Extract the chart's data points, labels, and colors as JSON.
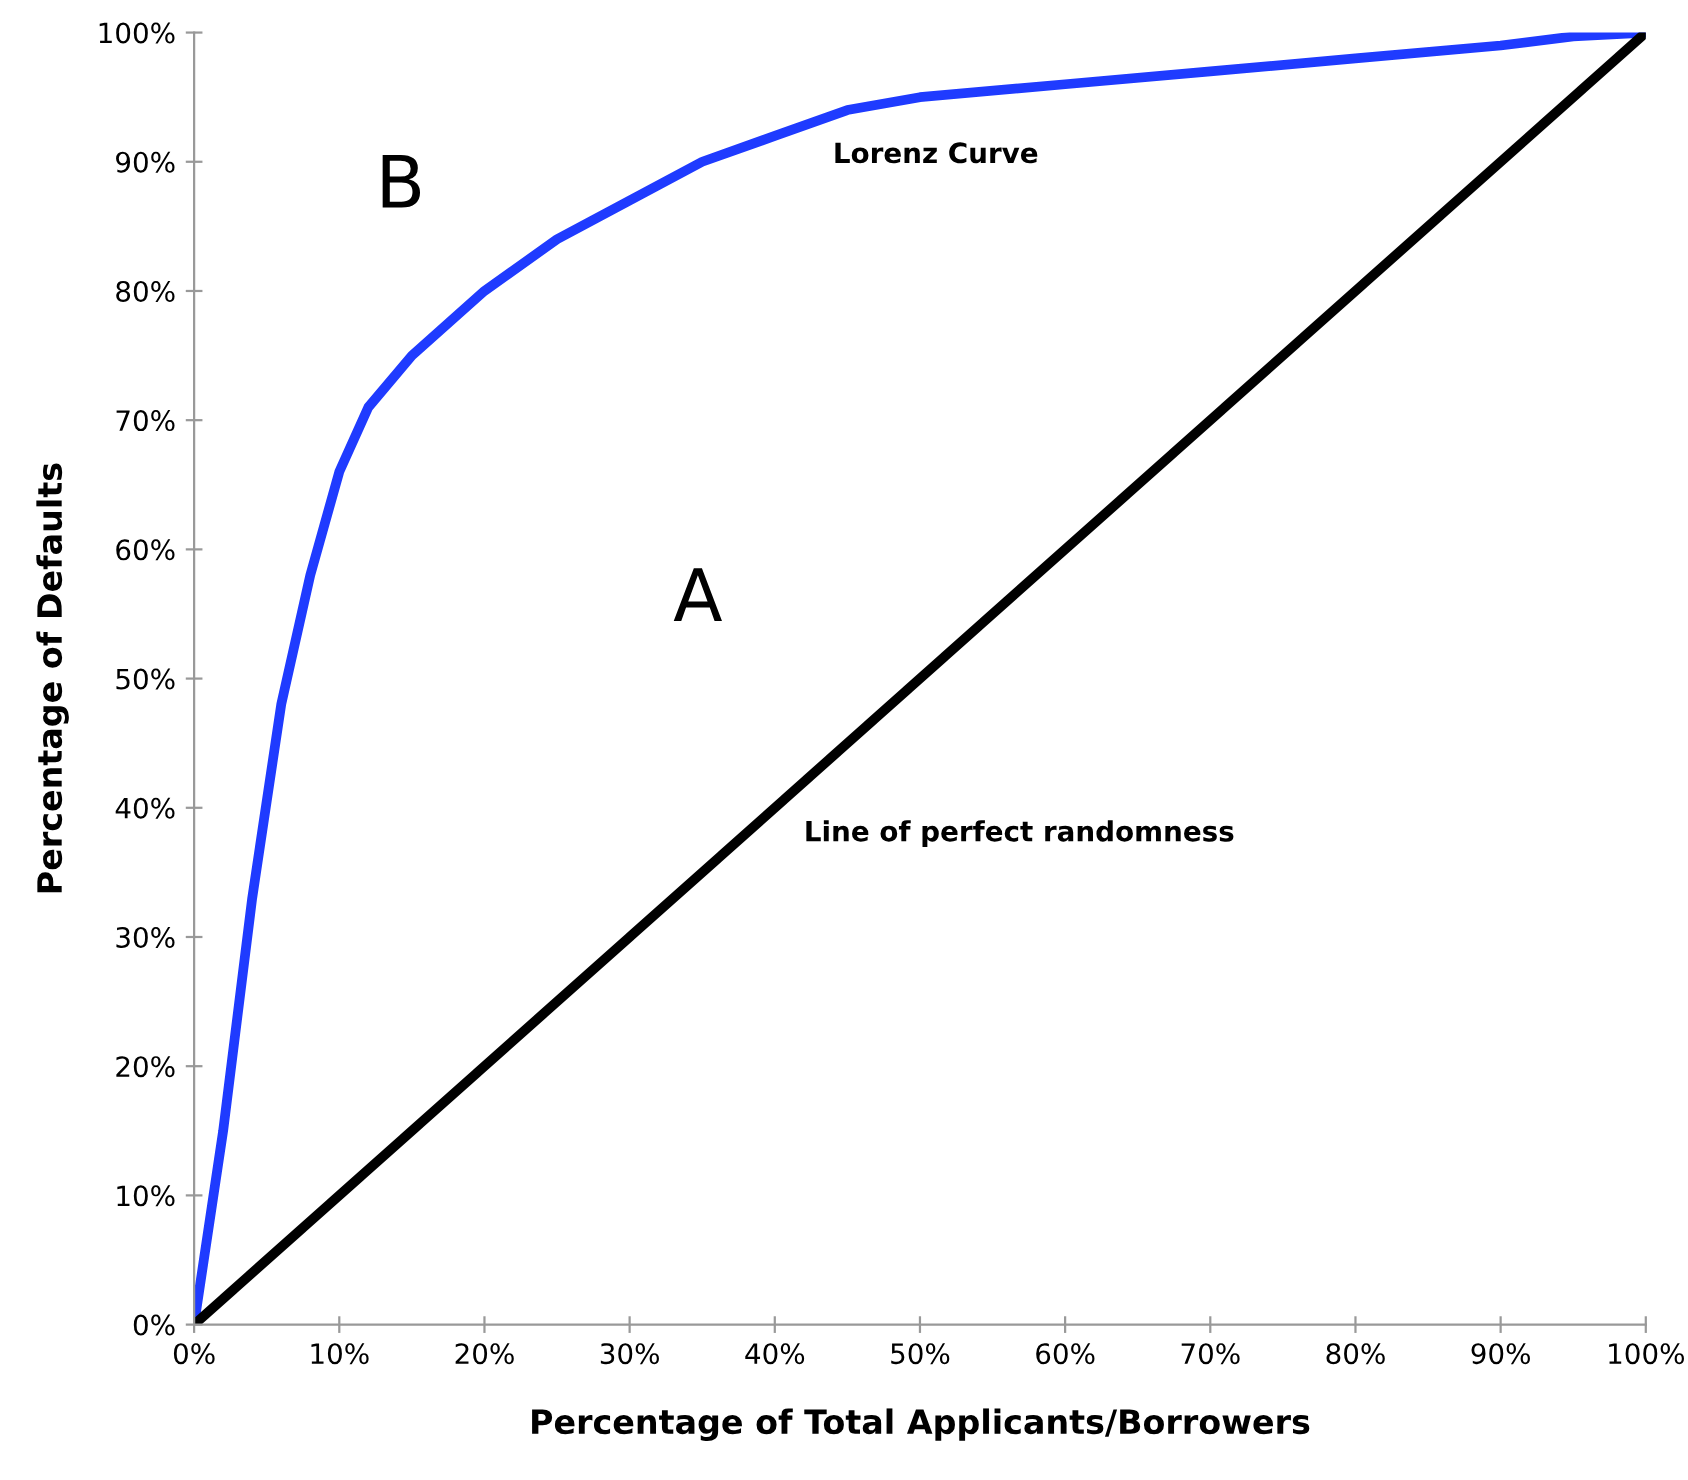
{
  "chart_data": {
    "type": "line",
    "xlabel": "Percentage of Total Applicants/Borrowers",
    "ylabel": "Percentage of Defaults",
    "series": [
      {
        "color": "#1f3bff",
        "x": [
          0,
          2,
          4,
          6,
          8,
          10,
          12,
          15,
          20,
          25,
          30,
          35,
          40,
          45,
          50,
          60,
          70,
          80,
          90,
          95,
          100
        ],
        "values": [
          0,
          15,
          33,
          48,
          58,
          66,
          71,
          75,
          80,
          84,
          87,
          90,
          92,
          94,
          95,
          96,
          97,
          98,
          99,
          99.7,
          100
        ]
      },
      {
        "color": "#000000",
        "x": [
          0,
          100
        ],
        "values": [
          0,
          100
        ]
      }
    ],
    "annotations": [
      "B",
      "A",
      "Lorenz Curve",
      "Line of perfect randomness"
    ],
    "xlim": [
      0,
      100
    ],
    "ylim": [
      0,
      100
    ],
    "xticks": [
      {
        "value": 0,
        "label": "0%"
      },
      {
        "value": 10,
        "label": "10%"
      },
      {
        "value": 20,
        "label": "20%"
      },
      {
        "value": 30,
        "label": "30%"
      },
      {
        "value": 40,
        "label": "40%"
      },
      {
        "value": 50,
        "label": "50%"
      },
      {
        "value": 60,
        "label": "60%"
      },
      {
        "value": 70,
        "label": "70%"
      },
      {
        "value": 80,
        "label": "80%"
      },
      {
        "value": 90,
        "label": "90%"
      },
      {
        "value": 100,
        "label": "100%"
      }
    ],
    "yticks": [
      {
        "value": 0,
        "label": "0%"
      },
      {
        "value": 10,
        "label": "10%"
      },
      {
        "value": 20,
        "label": "20%"
      },
      {
        "value": 30,
        "label": "30%"
      },
      {
        "value": 40,
        "label": "40%"
      },
      {
        "value": 50,
        "label": "50%"
      },
      {
        "value": 60,
        "label": "60%"
      },
      {
        "value": 70,
        "label": "70%"
      },
      {
        "value": 80,
        "label": "80%"
      },
      {
        "value": 90,
        "label": "90%"
      },
      {
        "value": 100,
        "label": "100%"
      }
    ],
    "grid": false,
    "marker": "none",
    "line_style": "solid"
  }
}
